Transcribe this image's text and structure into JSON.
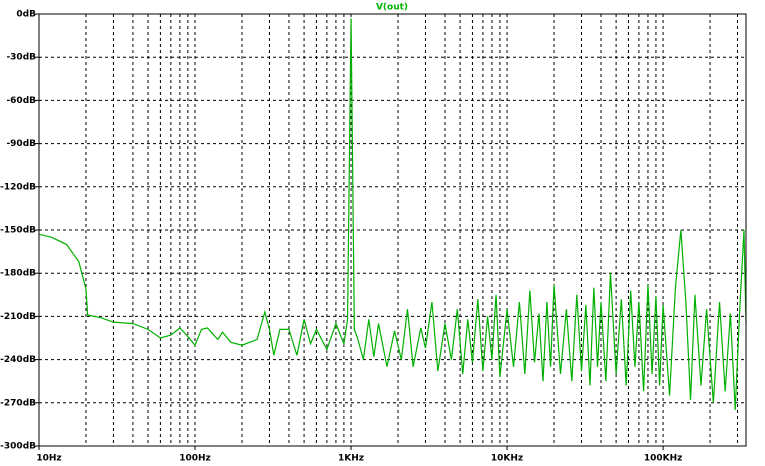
{
  "chart_data": {
    "type": "line",
    "title": "V(out)",
    "log_x": true,
    "grid": true,
    "grid_style": "dashed",
    "xlim": [
      10,
      340000
    ],
    "ylim": [
      -300,
      0
    ],
    "xticks": [
      {
        "value": 10,
        "label": "10Hz"
      },
      {
        "value": 100,
        "label": "100Hz"
      },
      {
        "value": 1000,
        "label": "1KHz"
      },
      {
        "value": 10000,
        "label": "10KHz"
      },
      {
        "value": 100000,
        "label": "100KHz"
      }
    ],
    "minor_xticks": [
      20,
      30,
      40,
      50,
      60,
      70,
      80,
      90,
      200,
      300,
      400,
      500,
      600,
      700,
      800,
      900,
      2000,
      3000,
      4000,
      5000,
      6000,
      7000,
      8000,
      9000,
      20000,
      30000,
      40000,
      50000,
      60000,
      70000,
      80000,
      90000,
      200000,
      300000
    ],
    "yticks": [
      {
        "value": 0,
        "label": "0dB"
      },
      {
        "value": -30,
        "label": "-30dB"
      },
      {
        "value": -60,
        "label": "-60dB"
      },
      {
        "value": -90,
        "label": "-90dB"
      },
      {
        "value": -120,
        "label": "-120dB"
      },
      {
        "value": -150,
        "label": "-150dB"
      },
      {
        "value": -180,
        "label": "-180dB"
      },
      {
        "value": -210,
        "label": "-210dB"
      },
      {
        "value": -240,
        "label": "-240dB"
      },
      {
        "value": -270,
        "label": "-270dB"
      },
      {
        "value": -300,
        "label": "-300dB"
      }
    ],
    "series": [
      {
        "name": "V(out)",
        "color": "#00b000",
        "x": [
          10,
          12,
          15,
          18,
          20,
          20.5,
          25,
          30,
          40,
          50,
          60,
          70,
          80,
          90,
          100,
          110,
          120,
          140,
          150,
          170,
          200,
          250,
          280,
          300,
          320,
          350,
          400,
          450,
          500,
          550,
          600,
          700,
          800,
          900,
          950,
          1000,
          1050,
          1100,
          1200,
          1300,
          1400,
          1500,
          1700,
          1900,
          2100,
          2300,
          2500,
          2800,
          3000,
          3300,
          3600,
          4000,
          4400,
          4800,
          5200,
          5600,
          6000,
          6500,
          7000,
          7500,
          8000,
          8500,
          9000,
          10000,
          11000,
          12000,
          13000,
          14000,
          15000,
          16000,
          17000,
          18000,
          19000,
          20000,
          22000,
          24000,
          26000,
          28000,
          30000,
          32000,
          34000,
          36000,
          38000,
          40000,
          43000,
          46000,
          50000,
          54000,
          58000,
          62000,
          66000,
          70000,
          75000,
          80000,
          85000,
          90000,
          95000,
          100000,
          110000,
          120000,
          130000,
          140000,
          150000,
          160000,
          175000,
          190000,
          210000,
          230000,
          250000,
          270000,
          290000,
          310000,
          330000,
          340000
        ],
        "values": [
          -153,
          -155,
          -160,
          -172,
          -191,
          -209,
          -211,
          -214,
          -215,
          -219,
          -225,
          -223,
          -218,
          -224,
          -230,
          -219,
          -218,
          -226,
          -221,
          -228,
          -230,
          -226,
          -207,
          -219,
          -237,
          -219,
          -219,
          -237,
          -212,
          -229,
          -219,
          -233,
          -215,
          -229,
          -212,
          -3,
          -219,
          -225,
          -240,
          -212,
          -238,
          -215,
          -245,
          -220,
          -240,
          -205,
          -245,
          -218,
          -232,
          -200,
          -248,
          -215,
          -240,
          -205,
          -250,
          -212,
          -242,
          -198,
          -248,
          -210,
          -240,
          -195,
          -252,
          -205,
          -245,
          -200,
          -250,
          -192,
          -242,
          -208,
          -255,
          -200,
          -245,
          -188,
          -250,
          -205,
          -255,
          -195,
          -248,
          -202,
          -258,
          -190,
          -245,
          -200,
          -255,
          -180,
          -250,
          -198,
          -258,
          -192,
          -245,
          -200,
          -262,
          -188,
          -250,
          -196,
          -258,
          -202,
          -265,
          -190,
          -150,
          -200,
          -268,
          -195,
          -258,
          -205,
          -270,
          -200,
          -262,
          -208,
          -275,
          -205,
          -150,
          -215
        ]
      }
    ]
  }
}
